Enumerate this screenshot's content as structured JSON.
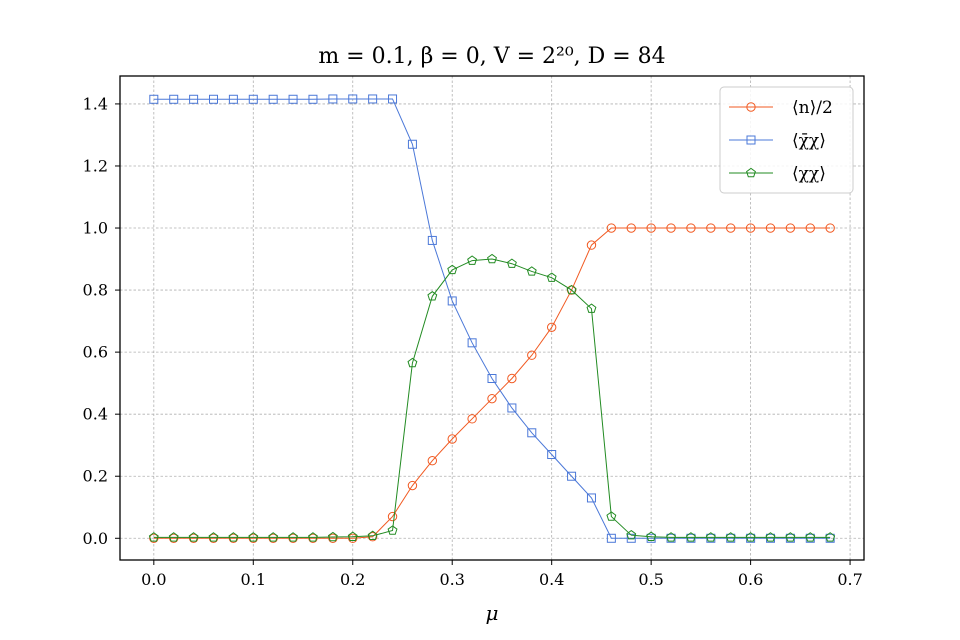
{
  "chart_data": {
    "type": "line",
    "title": "m = 0.1, β = 0, V = 2²⁰, D = 84",
    "xlabel": "μ",
    "ylabel": "",
    "xlim": [
      -0.034,
      0.714
    ],
    "ylim": [
      -0.07,
      1.49
    ],
    "xticks": [
      0.0,
      0.1,
      0.2,
      0.3,
      0.4,
      0.5,
      0.6,
      0.7
    ],
    "xtick_labels": [
      "0.0",
      "0.1",
      "0.2",
      "0.3",
      "0.4",
      "0.5",
      "0.6",
      "0.7"
    ],
    "yticks": [
      0.0,
      0.2,
      0.4,
      0.6,
      0.8,
      1.0,
      1.2,
      1.4
    ],
    "ytick_labels": [
      "0.0",
      "0.2",
      "0.4",
      "0.6",
      "0.8",
      "1.0",
      "1.2",
      "1.4"
    ],
    "grid": true,
    "legend_position": "top-right",
    "x": [
      0.0,
      0.02,
      0.04,
      0.06,
      0.08,
      0.1,
      0.12,
      0.14,
      0.16,
      0.18,
      0.2,
      0.22,
      0.24,
      0.26,
      0.28,
      0.3,
      0.32,
      0.34,
      0.36,
      0.38,
      0.4,
      0.42,
      0.44,
      0.46,
      0.48,
      0.5,
      0.52,
      0.54,
      0.56,
      0.58,
      0.6,
      0.62,
      0.64,
      0.66,
      0.68
    ],
    "series": [
      {
        "name": "⟨n⟩/2",
        "color": "#f15a22",
        "marker": "circle",
        "values": [
          0.0,
          0.0,
          0.0,
          0.0,
          0.0,
          0.0,
          0.0,
          0.0,
          0.0,
          0.0,
          0.0,
          0.005,
          0.07,
          0.17,
          0.25,
          0.32,
          0.385,
          0.45,
          0.515,
          0.59,
          0.68,
          0.8,
          0.945,
          1.0,
          1.0,
          1.0,
          1.0,
          1.0,
          1.0,
          1.0,
          1.0,
          1.0,
          1.0,
          1.0,
          1.0
        ]
      },
      {
        "name": "⟨χ̄χ⟩",
        "color": "#4b78d8",
        "marker": "square",
        "values": [
          1.415,
          1.415,
          1.415,
          1.415,
          1.415,
          1.415,
          1.415,
          1.415,
          1.415,
          1.416,
          1.416,
          1.416,
          1.416,
          1.27,
          0.96,
          0.765,
          0.63,
          0.515,
          0.42,
          0.34,
          0.27,
          0.2,
          0.13,
          0.0,
          0.0,
          0.0,
          0.0,
          0.0,
          0.0,
          0.0,
          0.0,
          0.0,
          0.0,
          0.0,
          0.0
        ]
      },
      {
        "name": "⟨χχ⟩",
        "color": "#228b22",
        "marker": "pentagon",
        "values": [
          0.003,
          0.003,
          0.003,
          0.003,
          0.003,
          0.003,
          0.003,
          0.003,
          0.003,
          0.004,
          0.005,
          0.008,
          0.025,
          0.565,
          0.78,
          0.865,
          0.895,
          0.9,
          0.885,
          0.86,
          0.84,
          0.8,
          0.74,
          0.07,
          0.01,
          0.005,
          0.003,
          0.003,
          0.003,
          0.003,
          0.003,
          0.003,
          0.003,
          0.003,
          0.003
        ]
      }
    ]
  }
}
